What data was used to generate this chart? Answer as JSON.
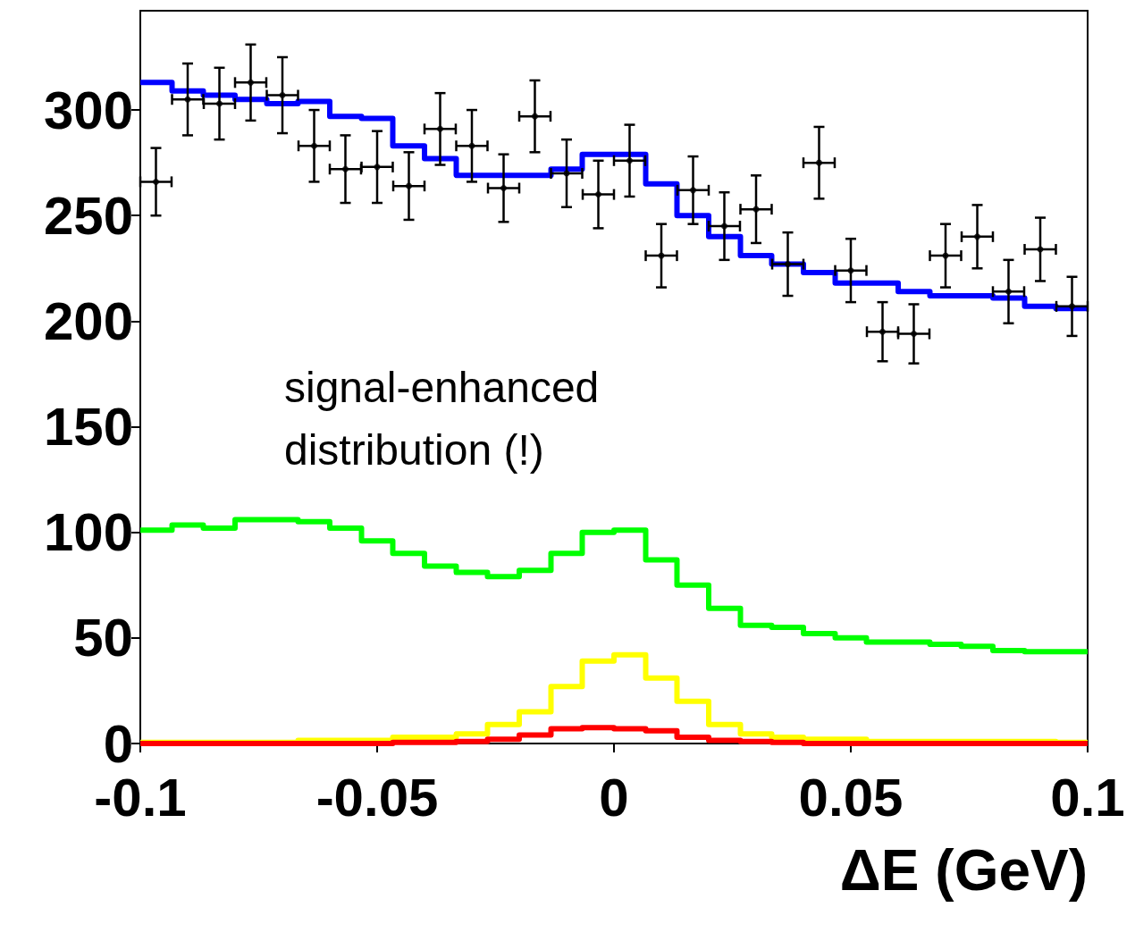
{
  "chart_data": {
    "type": "histogram",
    "xlabel": "ΔE (GeV)",
    "annotations": [
      "signal-enhanced distribution (!)"
    ],
    "bins": [
      -0.1,
      -0.0933,
      -0.0867,
      -0.08,
      -0.0733,
      -0.0667,
      -0.06,
      -0.0533,
      -0.0467,
      -0.04,
      -0.0333,
      -0.0267,
      -0.02,
      -0.0133,
      -0.0067,
      0,
      0.0067,
      0.0133,
      0.02,
      0.0267,
      0.0333,
      0.04,
      0.0467,
      0.0533,
      0.06,
      0.0667,
      0.0733,
      0.08,
      0.0867,
      0.0933,
      0.1
    ],
    "xlim": [
      -0.1,
      0.1
    ],
    "xticks": [
      -0.1,
      -0.05,
      0,
      0.05,
      0.1
    ],
    "ylim": [
      0,
      347
    ],
    "yticks": [
      0,
      50,
      100,
      150,
      200,
      250,
      300
    ],
    "grid": false,
    "series": [
      {
        "type": "histogram",
        "color": "#00ff00",
        "values": [
          101,
          103.5,
          102,
          106,
          106,
          105,
          102,
          96,
          90,
          84,
          81,
          79,
          82,
          90,
          100,
          101,
          87,
          75,
          64,
          56,
          55,
          52,
          50,
          48,
          48,
          47,
          46,
          44,
          43.5,
          43.5
        ]
      },
      {
        "type": "histogram",
        "color": "#ffff00",
        "values": [
          0.5,
          0.5,
          0.5,
          0.5,
          0.5,
          1.5,
          1.5,
          1.5,
          3,
          3,
          4.5,
          9,
          15,
          27,
          39,
          42,
          31,
          20,
          9,
          4.5,
          3,
          2,
          2,
          1,
          1,
          1,
          1,
          1,
          1,
          0.5
        ]
      },
      {
        "type": "histogram",
        "color": "#ff0000",
        "values": [
          0,
          0,
          0,
          0,
          0,
          0,
          0,
          0,
          0.5,
          0.5,
          1,
          2,
          4,
          7,
          7.5,
          7,
          6,
          3,
          1.5,
          1,
          0.5,
          0,
          0,
          0,
          0,
          0,
          0,
          0,
          0,
          0
        ]
      },
      {
        "type": "histogram",
        "color": "#0000ff",
        "values": [
          313,
          309,
          307,
          305,
          303,
          304,
          297,
          296,
          283,
          277,
          269,
          269,
          269,
          272,
          279,
          279,
          265,
          250,
          240,
          231,
          227,
          223,
          218,
          218,
          214,
          212,
          212,
          211,
          207,
          206
        ]
      },
      {
        "type": "scatter",
        "color": "#000000",
        "x": [
          -0.0967,
          -0.09,
          -0.0833,
          -0.0767,
          -0.07,
          -0.0633,
          -0.0567,
          -0.05,
          -0.0433,
          -0.0367,
          -0.03,
          -0.0233,
          -0.0167,
          -0.01,
          -0.0033,
          0.0033,
          0.01,
          0.0167,
          0.0233,
          0.03,
          0.0367,
          0.0433,
          0.05,
          0.0567,
          0.0633,
          0.07,
          0.0767,
          0.0833,
          0.09,
          0.0967
        ],
        "values": [
          266,
          305,
          303,
          313,
          307,
          283,
          272,
          273,
          264,
          291,
          283,
          263,
          297,
          270,
          260,
          276,
          231,
          262,
          245,
          253,
          227,
          275,
          224,
          195,
          194,
          231,
          240,
          214,
          234,
          207
        ],
        "errors": [
          16,
          17,
          17,
          18,
          18,
          17,
          16,
          17,
          16,
          17,
          17,
          16,
          17,
          16,
          16,
          17,
          15,
          16,
          16,
          16,
          15,
          17,
          15,
          14,
          14,
          15,
          15,
          15,
          15,
          14
        ],
        "xerrors": [
          0.0033,
          0.0033,
          0.0033,
          0.0033,
          0.0033,
          0.0033,
          0.0033,
          0.0033,
          0.0033,
          0.0033,
          0.0033,
          0.0033,
          0.0033,
          0.0033,
          0.0033,
          0.0033,
          0.0033,
          0.0033,
          0.0033,
          0.0033,
          0.0033,
          0.0033,
          0.0033,
          0.0033,
          0.0033,
          0.0033,
          0.0033,
          0.0033,
          0.0033,
          0.0033
        ]
      }
    ]
  }
}
